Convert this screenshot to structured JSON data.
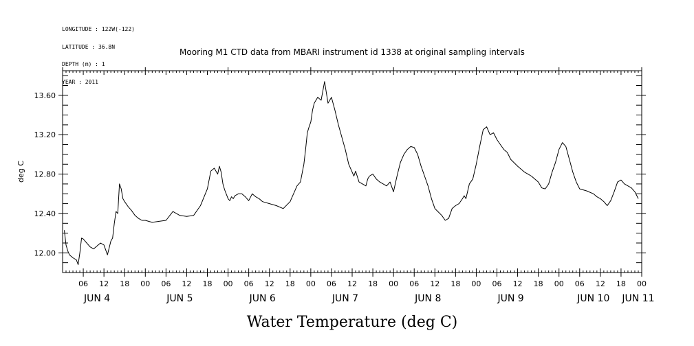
{
  "meta": {
    "longitude": "LONGITUDE : 122W(-122)",
    "latitude": "LATITUDE : 36.8N",
    "depth": "DEPTH (m) : 1",
    "year": "YEAR : 2011"
  },
  "chart_data": {
    "type": "line",
    "title": "Mooring M1 CTD data from MBARI instrument id 1338 at original sampling intervals",
    "xlabel": "Water Temperature (deg C)",
    "ylabel": "deg C",
    "xlim": [
      0,
      168
    ],
    "ylim": [
      11.8,
      13.85
    ],
    "yticks": [
      12.0,
      12.4,
      12.8,
      13.2,
      13.6
    ],
    "ytick_labels": [
      "12.00",
      "12.40",
      "12.80",
      "13.20",
      "13.60"
    ],
    "x_units": "hours since JUN 3 2011 00:00",
    "hour_ticks": [
      {
        "x": 6,
        "label": "06"
      },
      {
        "x": 12,
        "label": "12"
      },
      {
        "x": 18,
        "label": "18"
      },
      {
        "x": 24,
        "label": "00"
      },
      {
        "x": 30,
        "label": "06"
      },
      {
        "x": 36,
        "label": "12"
      },
      {
        "x": 42,
        "label": "18"
      },
      {
        "x": 48,
        "label": "00"
      },
      {
        "x": 54,
        "label": "06"
      },
      {
        "x": 60,
        "label": "12"
      },
      {
        "x": 66,
        "label": "18"
      },
      {
        "x": 72,
        "label": "00"
      },
      {
        "x": 78,
        "label": "06"
      },
      {
        "x": 84,
        "label": "12"
      },
      {
        "x": 90,
        "label": "18"
      },
      {
        "x": 96,
        "label": "00"
      },
      {
        "x": 102,
        "label": "06"
      },
      {
        "x": 108,
        "label": "12"
      },
      {
        "x": 114,
        "label": "18"
      },
      {
        "x": 120,
        "label": "00"
      },
      {
        "x": 126,
        "label": "06"
      },
      {
        "x": 132,
        "label": "12"
      },
      {
        "x": 138,
        "label": "18"
      },
      {
        "x": 144,
        "label": "00"
      },
      {
        "x": 150,
        "label": "06"
      },
      {
        "x": 156,
        "label": "12"
      },
      {
        "x": 162,
        "label": "18"
      },
      {
        "x": 168,
        "label": "00"
      }
    ],
    "day_labels": [
      {
        "x": 10,
        "label": "JUN  4"
      },
      {
        "x": 34,
        "label": "JUN  5"
      },
      {
        "x": 58,
        "label": "JUN  6"
      },
      {
        "x": 82,
        "label": "JUN  7"
      },
      {
        "x": 106,
        "label": "JUN  8"
      },
      {
        "x": 130,
        "label": "JUN  9"
      },
      {
        "x": 154,
        "label": "JUN 10"
      },
      {
        "x": 167,
        "label": "JUN 11"
      }
    ],
    "series": [
      {
        "x": [
          0.5,
          1,
          1.5,
          2,
          3,
          4,
          4.5,
          5,
          5.5,
          6,
          6.5,
          7,
          8,
          9,
          10,
          11,
          12,
          13,
          14,
          14.5,
          15,
          15.5,
          16,
          16.5,
          17,
          17.5,
          18,
          19,
          20,
          21,
          22,
          23,
          24,
          26,
          28,
          30,
          32,
          34,
          36,
          38,
          40,
          42,
          43,
          44,
          45,
          45.5,
          46,
          46.5,
          47,
          48,
          48.5,
          49,
          49.5,
          50,
          51,
          52,
          53,
          54,
          55,
          56,
          57,
          58,
          60,
          62,
          64,
          66,
          68,
          69,
          70,
          70.5,
          71,
          71.5,
          72,
          72.5,
          73,
          74,
          75,
          76,
          77,
          78,
          79,
          80,
          82,
          83,
          84,
          84.5,
          85,
          86,
          87,
          88,
          88.5,
          89,
          90,
          91,
          92,
          93,
          94,
          95,
          96,
          97,
          98,
          99,
          100,
          101,
          102,
          103,
          104,
          105,
          106,
          107,
          108,
          110,
          111,
          112,
          113,
          114,
          115,
          116,
          116.5,
          117,
          118,
          119,
          120,
          121,
          122,
          123,
          124,
          125,
          126,
          127,
          128,
          129,
          130,
          132,
          134,
          136,
          138,
          139,
          140,
          141,
          142,
          143,
          144,
          145,
          146,
          147,
          148,
          149,
          150,
          152,
          154,
          155,
          156,
          157,
          158,
          159,
          160,
          161,
          162,
          163,
          164,
          165,
          166,
          167
        ],
        "values": [
          12.23,
          12.08,
          12.02,
          11.98,
          11.95,
          11.93,
          11.88,
          12.0,
          12.15,
          12.14,
          12.12,
          12.1,
          12.06,
          12.04,
          12.07,
          12.1,
          12.08,
          11.98,
          12.12,
          12.15,
          12.3,
          12.42,
          12.4,
          12.7,
          12.65,
          12.55,
          12.52,
          12.47,
          12.43,
          12.38,
          12.35,
          12.33,
          12.33,
          12.31,
          12.32,
          12.33,
          12.42,
          12.38,
          12.37,
          12.38,
          12.48,
          12.65,
          12.83,
          12.86,
          12.8,
          12.88,
          12.82,
          12.7,
          12.64,
          12.55,
          12.53,
          12.57,
          12.55,
          12.58,
          12.6,
          12.6,
          12.57,
          12.53,
          12.6,
          12.57,
          12.55,
          12.52,
          12.5,
          12.48,
          12.45,
          12.52,
          12.68,
          12.72,
          12.9,
          13.05,
          13.22,
          13.28,
          13.33,
          13.45,
          13.52,
          13.58,
          13.55,
          13.74,
          13.52,
          13.58,
          13.45,
          13.3,
          13.05,
          12.9,
          12.82,
          12.78,
          12.83,
          12.72,
          12.7,
          12.68,
          12.75,
          12.78,
          12.8,
          12.75,
          12.72,
          12.7,
          12.68,
          12.72,
          12.62,
          12.78,
          12.92,
          13.0,
          13.05,
          13.08,
          13.07,
          13.0,
          12.88,
          12.78,
          12.68,
          12.55,
          12.45,
          12.38,
          12.33,
          12.35,
          12.45,
          12.48,
          12.5,
          12.55,
          12.58,
          12.55,
          12.7,
          12.75,
          12.9,
          13.08,
          13.25,
          13.28,
          13.2,
          13.22,
          13.15,
          13.1,
          13.05,
          13.02,
          12.95,
          12.88,
          12.82,
          12.78,
          12.72,
          12.66,
          12.65,
          12.7,
          12.82,
          12.92,
          13.05,
          13.12,
          13.08,
          12.95,
          12.82,
          12.72,
          12.65,
          12.63,
          12.6,
          12.57,
          12.55,
          12.52,
          12.48,
          12.53,
          12.62,
          12.72,
          12.74,
          12.7,
          12.68,
          12.66,
          12.62,
          12.55
        ]
      }
    ],
    "grid": false,
    "legend": "none"
  }
}
